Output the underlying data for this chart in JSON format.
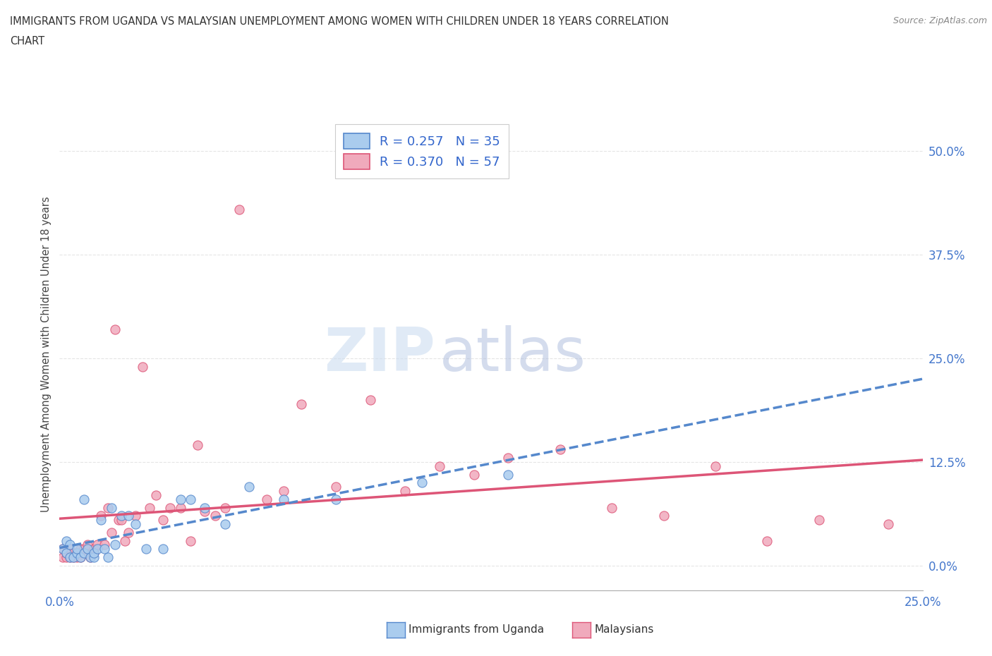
{
  "title_line1": "IMMIGRANTS FROM UGANDA VS MALAYSIAN UNEMPLOYMENT AMONG WOMEN WITH CHILDREN UNDER 18 YEARS CORRELATION",
  "title_line2": "CHART",
  "source": "Source: ZipAtlas.com",
  "ylabel": "Unemployment Among Women with Children Under 18 years",
  "xlim": [
    0.0,
    0.25
  ],
  "ylim": [
    -0.03,
    0.54
  ],
  "yticks": [
    0.0,
    0.125,
    0.25,
    0.375,
    0.5
  ],
  "ytick_labels": [
    "0.0%",
    "12.5%",
    "25.0%",
    "37.5%",
    "50.0%"
  ],
  "xticks": [
    0.0,
    0.05,
    0.1,
    0.15,
    0.2,
    0.25
  ],
  "xtick_labels": [
    "0.0%",
    "",
    "",
    "",
    "",
    "25.0%"
  ],
  "uganda_R": 0.257,
  "uganda_N": 35,
  "malaysian_R": 0.37,
  "malaysian_N": 57,
  "uganda_color": "#aaccee",
  "malaysian_color": "#f0aabc",
  "uganda_line_color": "#5588cc",
  "malaysian_line_color": "#dd5577",
  "watermark_color": "#c8dff0",
  "uganda_x": [
    0.001,
    0.002,
    0.002,
    0.003,
    0.003,
    0.004,
    0.005,
    0.005,
    0.006,
    0.007,
    0.007,
    0.008,
    0.009,
    0.01,
    0.01,
    0.011,
    0.012,
    0.013,
    0.014,
    0.015,
    0.016,
    0.018,
    0.02,
    0.022,
    0.025,
    0.03,
    0.035,
    0.038,
    0.042,
    0.048,
    0.055,
    0.065,
    0.08,
    0.105,
    0.13
  ],
  "uganda_y": [
    0.02,
    0.015,
    0.03,
    0.01,
    0.025,
    0.01,
    0.015,
    0.02,
    0.01,
    0.015,
    0.08,
    0.02,
    0.01,
    0.01,
    0.015,
    0.02,
    0.055,
    0.02,
    0.01,
    0.07,
    0.025,
    0.06,
    0.06,
    0.05,
    0.02,
    0.02,
    0.08,
    0.08,
    0.07,
    0.05,
    0.095,
    0.08,
    0.08,
    0.1,
    0.11
  ],
  "malaysian_x": [
    0.001,
    0.001,
    0.002,
    0.002,
    0.003,
    0.003,
    0.004,
    0.004,
    0.005,
    0.005,
    0.006,
    0.006,
    0.007,
    0.007,
    0.008,
    0.009,
    0.01,
    0.01,
    0.011,
    0.012,
    0.013,
    0.014,
    0.015,
    0.016,
    0.017,
    0.018,
    0.019,
    0.02,
    0.022,
    0.024,
    0.026,
    0.028,
    0.03,
    0.032,
    0.035,
    0.038,
    0.04,
    0.042,
    0.045,
    0.048,
    0.052,
    0.06,
    0.065,
    0.07,
    0.08,
    0.09,
    0.1,
    0.11,
    0.12,
    0.13,
    0.145,
    0.16,
    0.175,
    0.19,
    0.205,
    0.22,
    0.24
  ],
  "malaysian_y": [
    0.01,
    0.02,
    0.01,
    0.015,
    0.01,
    0.02,
    0.01,
    0.015,
    0.01,
    0.015,
    0.02,
    0.01,
    0.015,
    0.02,
    0.025,
    0.01,
    0.015,
    0.02,
    0.025,
    0.06,
    0.025,
    0.07,
    0.04,
    0.285,
    0.055,
    0.055,
    0.03,
    0.04,
    0.06,
    0.24,
    0.07,
    0.085,
    0.055,
    0.07,
    0.07,
    0.03,
    0.145,
    0.065,
    0.06,
    0.07,
    0.43,
    0.08,
    0.09,
    0.195,
    0.095,
    0.2,
    0.09,
    0.12,
    0.11,
    0.13,
    0.14,
    0.07,
    0.06,
    0.12,
    0.03,
    0.055,
    0.05
  ]
}
